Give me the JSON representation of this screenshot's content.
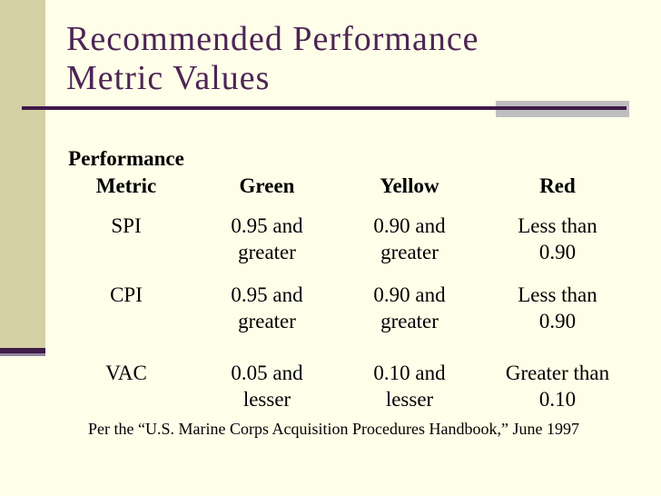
{
  "slide": {
    "title": {
      "line1": "Recommended Performance",
      "line2": "Metric Values"
    },
    "table": {
      "header": {
        "metric_line1": "Performance",
        "metric_line2": "Metric",
        "green": "Green",
        "yellow": "Yellow",
        "red": "Red"
      },
      "rows": [
        {
          "metric": "SPI",
          "green": [
            "0.95 and",
            "greater"
          ],
          "yellow": [
            "0.90 and",
            "greater"
          ],
          "red": [
            "Less than",
            "0.90"
          ]
        },
        {
          "metric": "CPI",
          "green": [
            "0.95 and",
            "greater"
          ],
          "yellow": [
            "0.90 and",
            "greater"
          ],
          "red": [
            "Less than",
            "0.90"
          ]
        },
        {
          "metric": "VAC",
          "green": [
            "0.05 and",
            "lesser"
          ],
          "yellow": [
            "0.10 and",
            "lesser"
          ],
          "red": [
            "Greater than",
            "0.10"
          ]
        }
      ]
    },
    "footnote": "Per the “U.S. Marine Corps Acquisition Procedures Handbook,” June 1997",
    "colors": {
      "background": "#FFFFE9",
      "sidebar_tan": "#D3D1A3",
      "title_purple": "#4D2555",
      "rule_purple": "#40194A",
      "rule_shadow_gray": "#BEBEBE",
      "accent_mauve": "#95859D",
      "body_text": "#000000"
    }
  }
}
